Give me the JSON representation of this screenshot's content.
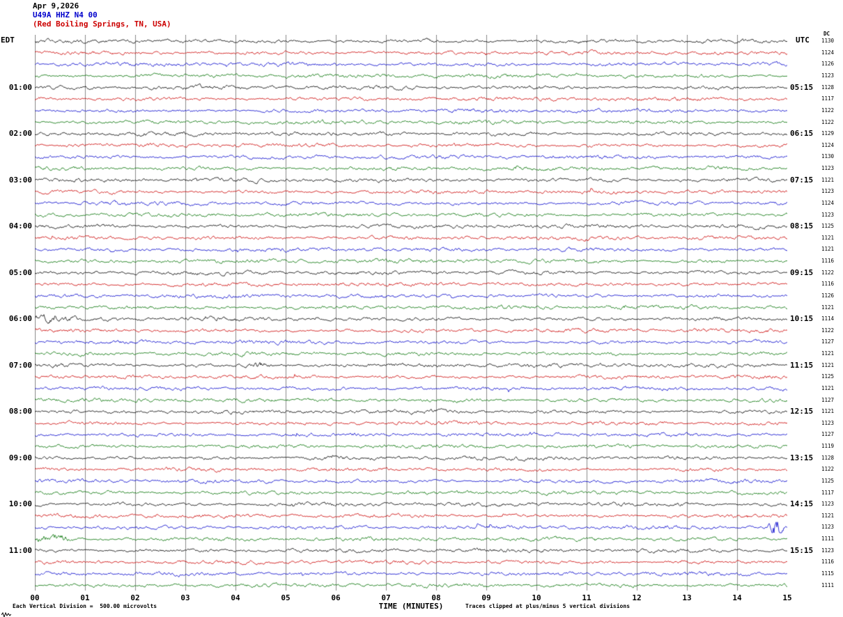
{
  "header": {
    "date": "Apr 9,2026",
    "station": "U49A HHZ N4 00",
    "location": "(Red Boiling Springs, TN, USA)"
  },
  "axes": {
    "left_tz": "EDT",
    "right_tz": "UTC",
    "dc_label": "DC",
    "x_title": "TIME (MINUTES)",
    "x_ticks": [
      "00",
      "01",
      "02",
      "03",
      "04",
      "05",
      "06",
      "07",
      "08",
      "09",
      "10",
      "11",
      "12",
      "13",
      "14",
      "15"
    ]
  },
  "footer": {
    "left": "Each Vertical Division =  500.00 microvolts",
    "right": "Traces clipped at plus/minus 5 vertical divisions"
  },
  "chart_data": {
    "type": "line",
    "kind": "seismogram-helicorder",
    "minutes_per_row": 15,
    "x_range_minutes": [
      0,
      15
    ],
    "grid": "vertical-minute-lines",
    "colors": {
      "black": "#000000",
      "red": "#cc0000",
      "blue": "#0000cc",
      "green": "#007000"
    },
    "rows": [
      {
        "color": "black",
        "edt": "",
        "utc": "",
        "dc": 1130
      },
      {
        "color": "red",
        "edt": "",
        "utc": "",
        "dc": 1124
      },
      {
        "color": "blue",
        "edt": "",
        "utc": "",
        "dc": 1126
      },
      {
        "color": "green",
        "edt": "",
        "utc": "",
        "dc": 1123
      },
      {
        "color": "black",
        "edt": "01:00",
        "utc": "05:15",
        "dc": 1128
      },
      {
        "color": "red",
        "edt": "",
        "utc": "",
        "dc": 1117
      },
      {
        "color": "blue",
        "edt": "",
        "utc": "",
        "dc": 1122
      },
      {
        "color": "green",
        "edt": "",
        "utc": "",
        "dc": 1122
      },
      {
        "color": "black",
        "edt": "02:00",
        "utc": "06:15",
        "dc": 1129
      },
      {
        "color": "red",
        "edt": "",
        "utc": "",
        "dc": 1124
      },
      {
        "color": "blue",
        "edt": "",
        "utc": "",
        "dc": 1130
      },
      {
        "color": "green",
        "edt": "",
        "utc": "",
        "dc": 1123
      },
      {
        "color": "black",
        "edt": "03:00",
        "utc": "07:15",
        "dc": 1121
      },
      {
        "color": "red",
        "edt": "",
        "utc": "",
        "dc": 1123
      },
      {
        "color": "blue",
        "edt": "",
        "utc": "",
        "dc": 1124
      },
      {
        "color": "green",
        "edt": "",
        "utc": "",
        "dc": 1123
      },
      {
        "color": "black",
        "edt": "04:00",
        "utc": "08:15",
        "dc": 1125
      },
      {
        "color": "red",
        "edt": "",
        "utc": "",
        "dc": 1121
      },
      {
        "color": "blue",
        "edt": "",
        "utc": "",
        "dc": 1121
      },
      {
        "color": "green",
        "edt": "",
        "utc": "",
        "dc": 1116
      },
      {
        "color": "black",
        "edt": "05:00",
        "utc": "09:15",
        "dc": 1122
      },
      {
        "color": "red",
        "edt": "",
        "utc": "",
        "dc": 1116
      },
      {
        "color": "blue",
        "edt": "",
        "utc": "",
        "dc": 1126
      },
      {
        "color": "green",
        "edt": "",
        "utc": "",
        "dc": 1121
      },
      {
        "color": "black",
        "edt": "06:00",
        "utc": "10:15",
        "dc": 1114
      },
      {
        "color": "red",
        "edt": "",
        "utc": "",
        "dc": 1122
      },
      {
        "color": "blue",
        "edt": "",
        "utc": "",
        "dc": 1127
      },
      {
        "color": "green",
        "edt": "",
        "utc": "",
        "dc": 1121
      },
      {
        "color": "black",
        "edt": "07:00",
        "utc": "11:15",
        "dc": 1121
      },
      {
        "color": "red",
        "edt": "",
        "utc": "",
        "dc": 1125
      },
      {
        "color": "blue",
        "edt": "",
        "utc": "",
        "dc": 1121
      },
      {
        "color": "green",
        "edt": "",
        "utc": "",
        "dc": 1127
      },
      {
        "color": "black",
        "edt": "08:00",
        "utc": "12:15",
        "dc": 1121
      },
      {
        "color": "red",
        "edt": "",
        "utc": "",
        "dc": 1123
      },
      {
        "color": "blue",
        "edt": "",
        "utc": "",
        "dc": 1127
      },
      {
        "color": "green",
        "edt": "",
        "utc": "",
        "dc": 1119
      },
      {
        "color": "black",
        "edt": "09:00",
        "utc": "13:15",
        "dc": 1128
      },
      {
        "color": "red",
        "edt": "",
        "utc": "",
        "dc": 1122
      },
      {
        "color": "blue",
        "edt": "",
        "utc": "",
        "dc": 1125
      },
      {
        "color": "green",
        "edt": "",
        "utc": "",
        "dc": 1117
      },
      {
        "color": "black",
        "edt": "10:00",
        "utc": "14:15",
        "dc": 1123
      },
      {
        "color": "red",
        "edt": "",
        "utc": "",
        "dc": 1121
      },
      {
        "color": "blue",
        "edt": "",
        "utc": "",
        "dc": 1123
      },
      {
        "color": "green",
        "edt": "",
        "utc": "",
        "dc": 1111
      },
      {
        "color": "black",
        "edt": "11:00",
        "utc": "15:15",
        "dc": 1123
      },
      {
        "color": "red",
        "edt": "",
        "utc": "",
        "dc": 1116
      },
      {
        "color": "blue",
        "edt": "",
        "utc": "",
        "dc": 1115
      },
      {
        "color": "green",
        "edt": "",
        "utc": "",
        "dc": 1111
      }
    ],
    "events": [
      {
        "row": 24,
        "pos": 0.02,
        "width": 0.05,
        "amp": 1.2
      },
      {
        "row": 28,
        "pos": 0.3,
        "width": 0.02,
        "amp": 1.5
      },
      {
        "row": 42,
        "pos": 0.985,
        "width": 0.013,
        "amp": 7.0
      },
      {
        "row": 43,
        "pos": 0.02,
        "width": 0.05,
        "amp": 2.3
      }
    ],
    "clip_divisions": 5
  }
}
